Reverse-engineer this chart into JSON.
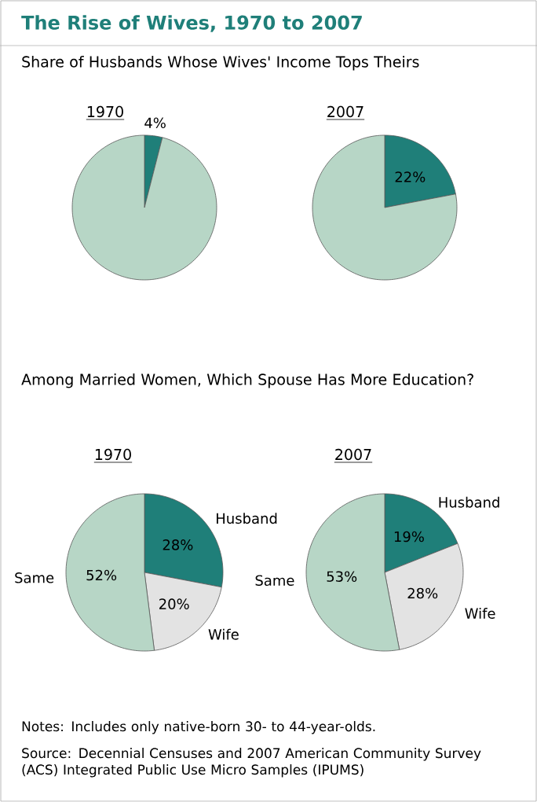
{
  "chart_data": [
    {
      "type": "other",
      "title": "The Rise of Wives, 1970 to 2007",
      "annotations": [
        "Notes: Includes only native-born 30- to 44-year-olds.",
        "Source: Decennial Censuses and 2007 American Community Survey (ACS) Integrated Public Use Micro Samples (IPUMS)"
      ]
    },
    {
      "type": "pie",
      "subtitle": "Share of Husbands Whose Wives' Income Tops Theirs",
      "title": "1970",
      "categories": [
        null,
        null
      ],
      "values": [
        4,
        96
      ],
      "colors": [
        "#1f7f79",
        "#b7d6c6"
      ],
      "value_labels": [
        "4%",
        null
      ]
    },
    {
      "type": "pie",
      "title": "2007",
      "categories": [
        null,
        null
      ],
      "values": [
        22,
        78
      ],
      "colors": [
        "#1f7f79",
        "#b7d6c6"
      ],
      "value_labels": [
        "22%",
        null
      ]
    },
    {
      "type": "pie",
      "subtitle": "Among Married Women, Which Spouse Has More Education?",
      "title": "1970",
      "categories": [
        "Husband",
        "Wife",
        "Same"
      ],
      "values": [
        28,
        20,
        52
      ],
      "colors": [
        "#1f7f79",
        "#e3e3e3",
        "#b7d6c6"
      ],
      "value_labels": [
        "28%",
        "20%",
        "52%"
      ]
    },
    {
      "type": "pie",
      "title": "2007",
      "categories": [
        "Husband",
        "Wife",
        "Same"
      ],
      "values": [
        19,
        28,
        53
      ],
      "colors": [
        "#1f7f79",
        "#e3e3e3",
        "#b7d6c6"
      ],
      "value_labels": [
        "19%",
        "28%",
        "53%"
      ]
    }
  ]
}
